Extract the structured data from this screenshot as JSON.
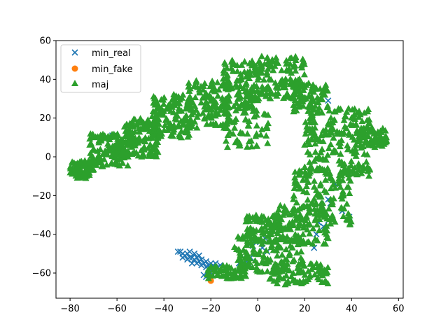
{
  "chart_data": {
    "type": "scatter",
    "xlim": [
      -86,
      62
    ],
    "ylim": [
      -73,
      60
    ],
    "x_ticks": [
      -80,
      -60,
      -40,
      -20,
      0,
      20,
      40,
      60
    ],
    "y_ticks": [
      -60,
      -40,
      -20,
      0,
      20,
      40,
      60
    ],
    "x_tick_labels": [
      "−80",
      "−60",
      "−40",
      "−20",
      "0",
      "20",
      "40",
      "60"
    ],
    "y_tick_labels": [
      "−60",
      "−40",
      "−20",
      "0",
      "20",
      "40",
      "60"
    ],
    "grid": false,
    "legend_position": "top-left",
    "series": [
      {
        "name": "min_real",
        "marker": "x",
        "color": "#1f77b4",
        "points": [
          [
            -33,
            -49
          ],
          [
            -32,
            -50
          ],
          [
            -31,
            -51
          ],
          [
            -30,
            -50
          ],
          [
            -29,
            -52
          ],
          [
            -28,
            -52
          ],
          [
            -27,
            -53
          ],
          [
            -26,
            -52
          ],
          [
            -25,
            -54
          ],
          [
            -24,
            -53
          ],
          [
            -23,
            -55
          ],
          [
            -22,
            -54
          ],
          [
            -21,
            -56
          ],
          [
            -20,
            -55
          ],
          [
            -19,
            -56
          ],
          [
            -18,
            -55
          ],
          [
            -17,
            -57
          ],
          [
            -16,
            -56
          ],
          [
            -30,
            -53
          ],
          [
            -28,
            -55
          ],
          [
            -26,
            -55
          ],
          [
            -24,
            -56
          ],
          [
            -22,
            -57
          ],
          [
            -20,
            -58
          ],
          [
            -18,
            -59
          ],
          [
            -32,
            -52
          ],
          [
            -34,
            -49
          ],
          [
            -29,
            -49
          ],
          [
            -27,
            -50
          ],
          [
            -25,
            -51
          ],
          [
            -21,
            -60
          ],
          [
            -22,
            -62
          ],
          [
            -23,
            -61
          ],
          [
            -19,
            -61
          ],
          [
            -8,
            -55
          ],
          [
            -7,
            -54
          ],
          [
            -6,
            -56
          ],
          [
            -5,
            -53
          ],
          [
            -4,
            -55
          ],
          [
            -3,
            -52
          ],
          [
            -6,
            -58
          ],
          [
            -3,
            -45
          ],
          [
            -2,
            -46
          ],
          [
            1,
            -44
          ],
          [
            2,
            -47
          ],
          [
            4,
            -49
          ],
          [
            3,
            -42
          ],
          [
            24,
            -47
          ],
          [
            25,
            -40
          ],
          [
            28,
            -36
          ],
          [
            30,
            -33
          ],
          [
            31,
            -24
          ],
          [
            30,
            -22
          ],
          [
            33,
            -14
          ],
          [
            36,
            -28
          ],
          [
            39,
            -31
          ],
          [
            26,
            -34
          ],
          [
            -62,
            11
          ],
          [
            30,
            29
          ]
        ]
      },
      {
        "name": "min_fake",
        "marker": "o",
        "color": "#ff7f0e",
        "points": [
          [
            -20,
            -64
          ]
        ]
      },
      {
        "name": "maj",
        "marker": "^",
        "color": "#2ca02c",
        "points": []
      }
    ]
  },
  "maj_regions": [
    {
      "pts": 70,
      "x": [
        -80,
        -70
      ],
      "y": [
        -11,
        -2
      ]
    },
    {
      "pts": 120,
      "x": [
        -72,
        -55
      ],
      "y": [
        -5,
        12
      ]
    },
    {
      "pts": 130,
      "x": [
        -58,
        -42
      ],
      "y": [
        0,
        20
      ]
    },
    {
      "pts": 130,
      "x": [
        -45,
        -28
      ],
      "y": [
        10,
        33
      ]
    },
    {
      "pts": 120,
      "x": [
        -30,
        -12
      ],
      "y": [
        15,
        40
      ]
    },
    {
      "pts": 130,
      "x": [
        -15,
        0
      ],
      "y": [
        25,
        50
      ]
    },
    {
      "pts": 130,
      "x": [
        -2,
        20
      ],
      "y": [
        30,
        52
      ]
    },
    {
      "pts": 60,
      "x": [
        -15,
        5
      ],
      "y": [
        5,
        25
      ]
    },
    {
      "pts": 80,
      "x": [
        15,
        30
      ],
      "y": [
        22,
        38
      ]
    },
    {
      "pts": 200,
      "x": [
        20,
        48
      ],
      "y": [
        -10,
        25
      ]
    },
    {
      "pts": 80,
      "x": [
        42,
        55
      ],
      "y": [
        5,
        15
      ]
    },
    {
      "pts": 130,
      "x": [
        15,
        40
      ],
      "y": [
        -35,
        -5
      ]
    },
    {
      "pts": 110,
      "x": [
        5,
        30
      ],
      "y": [
        -45,
        -25
      ]
    },
    {
      "pts": 60,
      "x": [
        -5,
        10
      ],
      "y": [
        -40,
        -30
      ]
    },
    {
      "pts": 140,
      "x": [
        -10,
        20
      ],
      "y": [
        -60,
        -40
      ]
    },
    {
      "pts": 80,
      "x": [
        5,
        30
      ],
      "y": [
        -66,
        -55
      ]
    },
    {
      "pts": 60,
      "x": [
        -22,
        -5
      ],
      "y": [
        -63,
        -56
      ]
    }
  ],
  "legend": {
    "items": [
      "min_real",
      "min_fake",
      "maj"
    ]
  }
}
